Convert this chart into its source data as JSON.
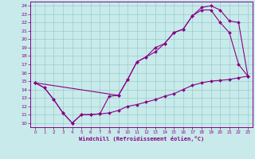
{
  "background_color": "#c8eaea",
  "line_color": "#880088",
  "grid_color": "#99cccc",
  "xlabel": "Windchill (Refroidissement éolien,°C)",
  "ylabel_ticks": [
    10,
    11,
    12,
    13,
    14,
    15,
    16,
    17,
    18,
    19,
    20,
    21,
    22,
    23,
    24
  ],
  "xlabel_ticks": [
    0,
    1,
    2,
    3,
    4,
    5,
    6,
    7,
    8,
    9,
    10,
    11,
    12,
    13,
    14,
    15,
    16,
    17,
    18,
    19,
    20,
    21,
    22,
    23
  ],
  "xlim": [
    -0.5,
    23.5
  ],
  "ylim": [
    9.5,
    24.5
  ],
  "line1_x": [
    0,
    1,
    2,
    3,
    4,
    5,
    6,
    7,
    8,
    9,
    10,
    11,
    12,
    13,
    14,
    15,
    16,
    17,
    18,
    19,
    20,
    21,
    22,
    23
  ],
  "line1_y": [
    14.8,
    14.2,
    12.8,
    11.2,
    10.0,
    11.0,
    11.0,
    11.1,
    11.2,
    11.5,
    12.0,
    12.2,
    12.5,
    12.8,
    13.2,
    13.5,
    14.0,
    14.5,
    14.8,
    15.0,
    15.1,
    15.2,
    15.4,
    15.6
  ],
  "line2_x": [
    0,
    1,
    2,
    3,
    4,
    5,
    6,
    7,
    8,
    9,
    10,
    11,
    12,
    13,
    14,
    15,
    16,
    17,
    18,
    19,
    20,
    21,
    22,
    23
  ],
  "line2_y": [
    14.8,
    14.2,
    12.8,
    11.2,
    10.0,
    11.0,
    11.0,
    11.1,
    13.2,
    13.3,
    15.2,
    17.3,
    17.9,
    18.5,
    19.5,
    20.8,
    21.2,
    22.8,
    23.5,
    23.5,
    22.0,
    20.8,
    17.0,
    15.6
  ],
  "line3_x": [
    0,
    9,
    10,
    11,
    12,
    13,
    14,
    15,
    16,
    17,
    18,
    19,
    20,
    21,
    22,
    23
  ],
  "line3_y": [
    14.8,
    13.3,
    15.2,
    17.3,
    17.9,
    19.0,
    19.5,
    20.8,
    21.2,
    22.8,
    23.8,
    24.0,
    23.5,
    22.2,
    22.0,
    15.6
  ]
}
